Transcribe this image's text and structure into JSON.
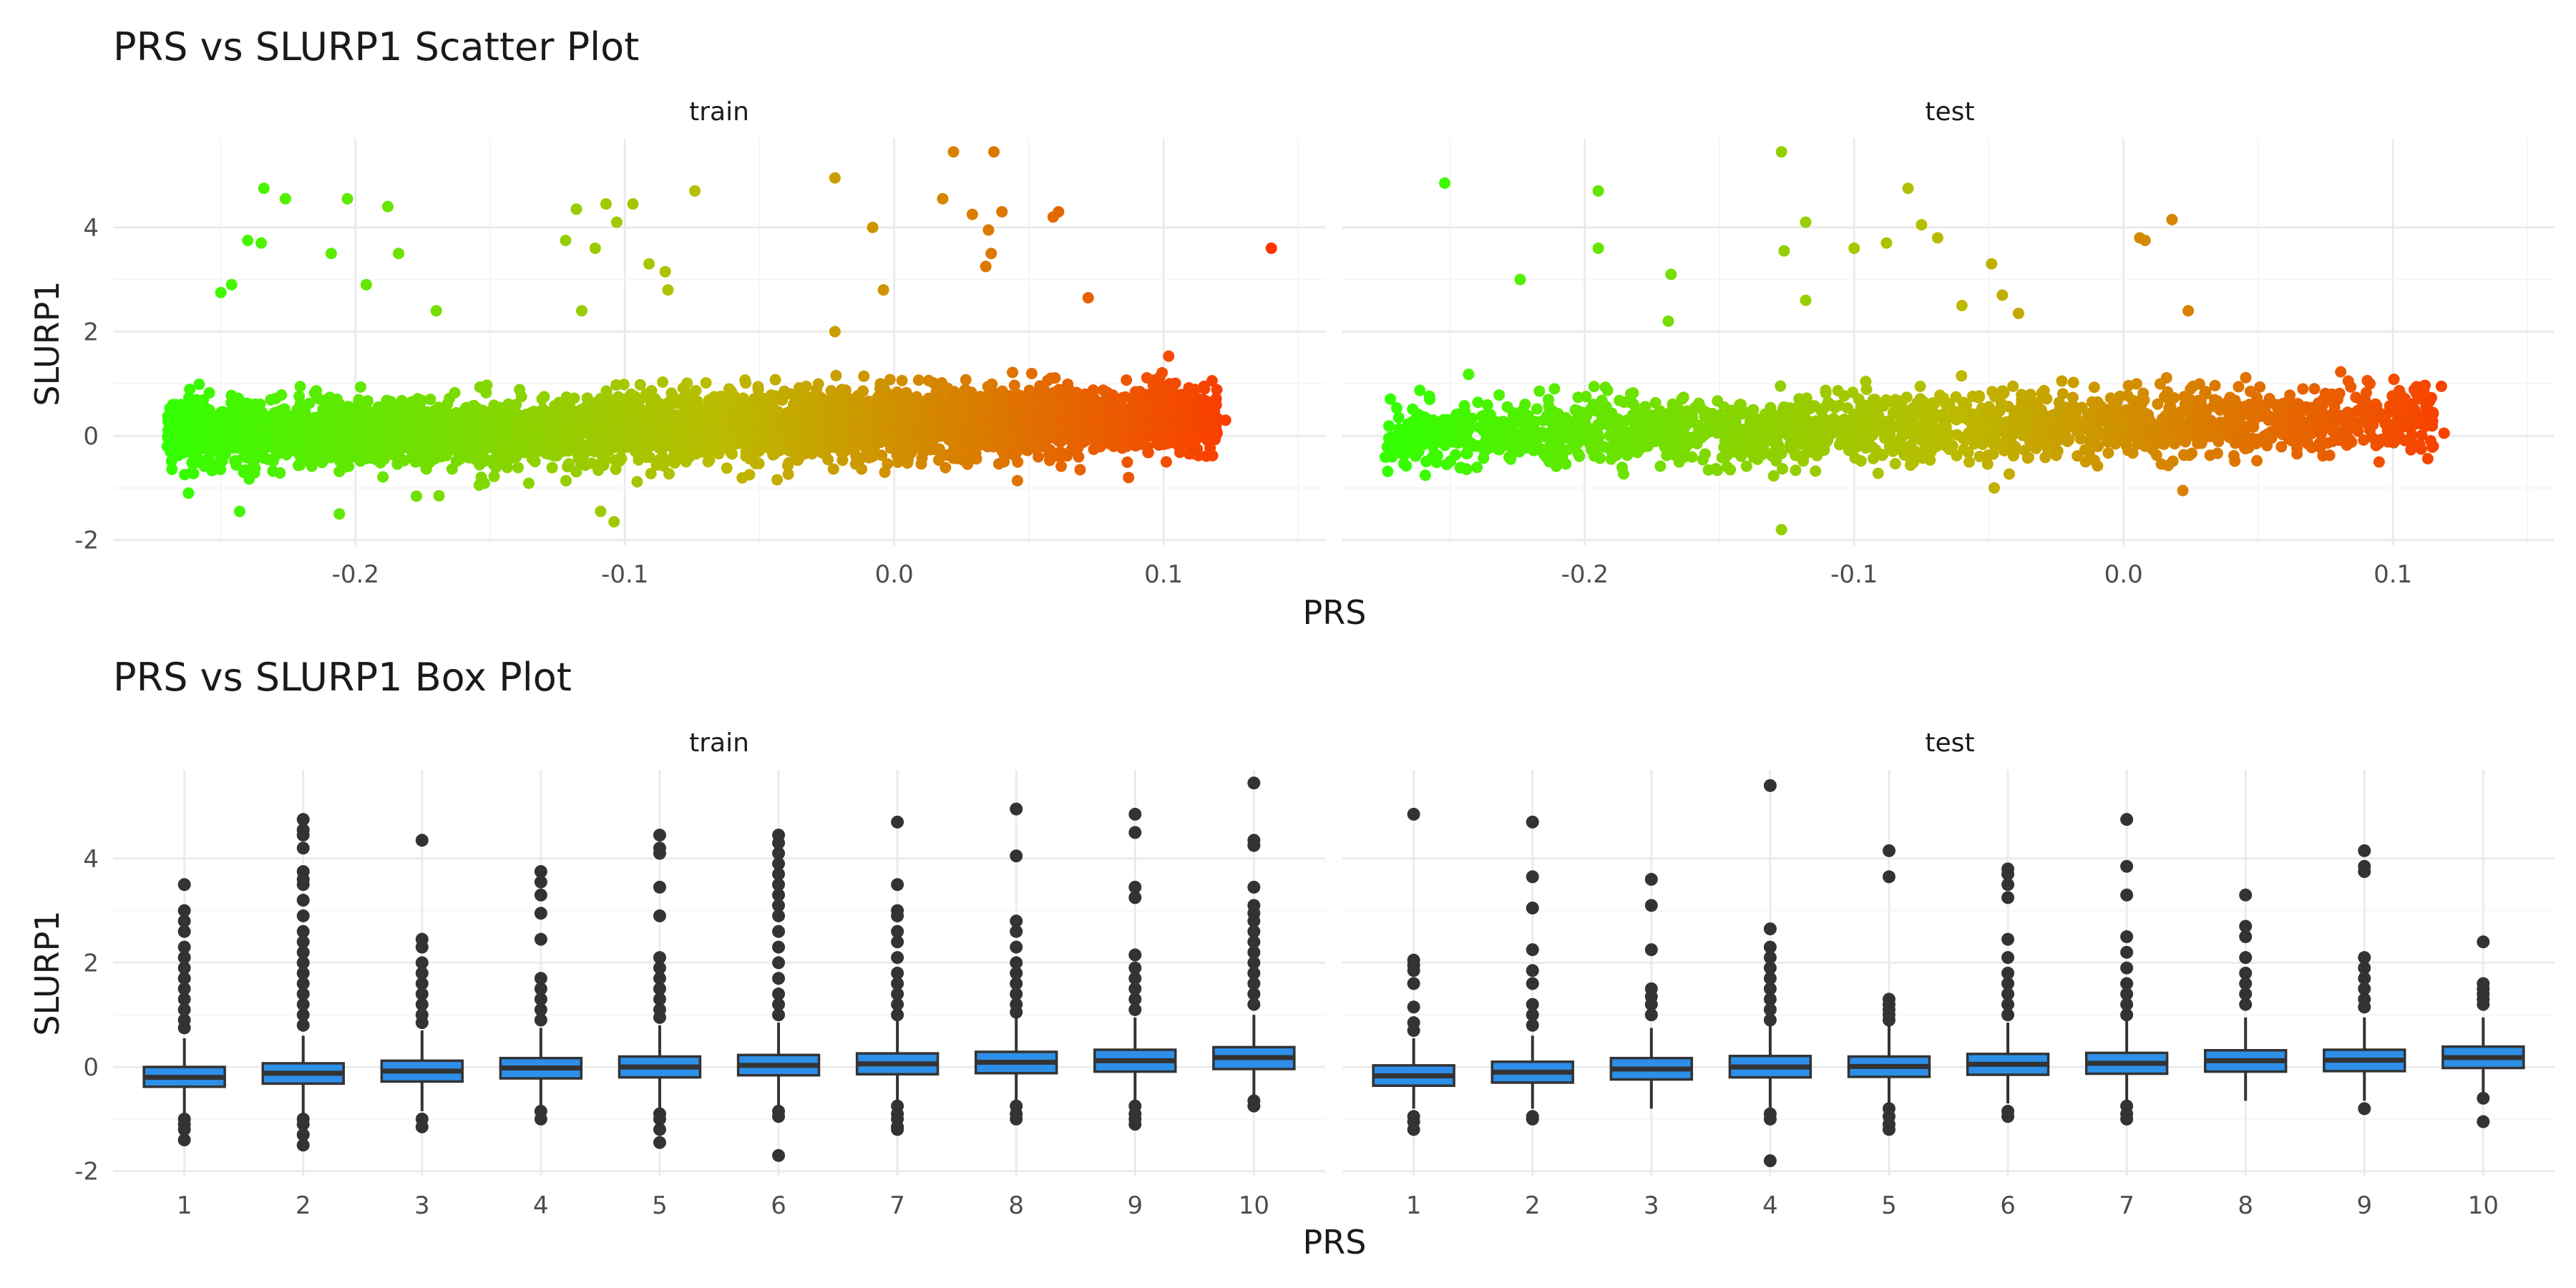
{
  "chart_data": [
    {
      "type": "scatter",
      "title": "PRS vs SLURP1 Scatter Plot",
      "xlabel": "PRS",
      "ylabel": "SLURP1",
      "facets": [
        "train",
        "test"
      ],
      "xlim": [
        -0.29,
        0.16
      ],
      "ylim": [
        -2.1,
        5.7
      ],
      "xticks": [
        -0.2,
        -0.1,
        0.0,
        0.1
      ],
      "xtick_labels": [
        "-0.2",
        "-0.1",
        "0.0",
        "0.1"
      ],
      "yticks": [
        -2,
        0,
        2,
        4
      ],
      "ytick_labels": [
        "-2",
        "0",
        "2",
        "4"
      ],
      "grid": true,
      "legend": "none",
      "color_gradient": {
        "low": "#33ff00",
        "mid": "#bbbb00",
        "high": "#ff3300",
        "low_value": -0.27,
        "high_value": 0.14
      },
      "panels": {
        "train": {
          "n_bulk_points": 4200,
          "bulk_x_range": [
            -0.27,
            0.12
          ],
          "points": [
            [
              0.14,
              3.6
            ],
            [
              -0.234,
              4.75
            ],
            [
              -0.226,
              4.55
            ],
            [
              -0.203,
              4.55
            ],
            [
              -0.188,
              4.4
            ],
            [
              -0.24,
              3.75
            ],
            [
              -0.235,
              3.7
            ],
            [
              -0.209,
              3.5
            ],
            [
              -0.184,
              3.5
            ],
            [
              -0.246,
              2.9
            ],
            [
              -0.25,
              2.75
            ],
            [
              -0.196,
              2.9
            ],
            [
              -0.17,
              2.4
            ],
            [
              -0.118,
              4.35
            ],
            [
              -0.107,
              4.45
            ],
            [
              -0.097,
              4.45
            ],
            [
              -0.074,
              4.7
            ],
            [
              -0.103,
              4.1
            ],
            [
              -0.122,
              3.75
            ],
            [
              -0.111,
              3.6
            ],
            [
              -0.091,
              3.3
            ],
            [
              -0.085,
              3.15
            ],
            [
              -0.116,
              2.4
            ],
            [
              -0.084,
              2.8
            ],
            [
              -0.022,
              4.95
            ],
            [
              0.022,
              5.45
            ],
            [
              0.037,
              5.45
            ],
            [
              0.018,
              4.55
            ],
            [
              0.029,
              4.25
            ],
            [
              0.04,
              4.3
            ],
            [
              0.061,
              4.3
            ],
            [
              0.059,
              4.2
            ],
            [
              -0.008,
              4.0
            ],
            [
              0.035,
              3.95
            ],
            [
              0.036,
              3.5
            ],
            [
              0.034,
              3.25
            ],
            [
              0.072,
              2.65
            ],
            [
              -0.004,
              2.8
            ],
            [
              -0.022,
              2.0
            ],
            [
              0.115,
              0.95
            ],
            [
              0.123,
              0.3
            ],
            [
              0.118,
              0.15
            ],
            [
              -0.268,
              0.2
            ],
            [
              -0.262,
              -1.1
            ],
            [
              -0.243,
              -1.45
            ],
            [
              -0.206,
              -1.5
            ],
            [
              -0.169,
              -1.15
            ],
            [
              -0.104,
              -1.65
            ],
            [
              -0.109,
              -1.45
            ],
            [
              0.069,
              -0.65
            ],
            [
              0.087,
              -0.8
            ],
            [
              0.101,
              -0.5
            ]
          ]
        },
        "test": {
          "n_bulk_points": 1900,
          "bulk_x_range": [
            -0.275,
            0.115
          ],
          "points": [
            [
              -0.252,
              4.85
            ],
            [
              -0.195,
              4.7
            ],
            [
              -0.127,
              5.45
            ],
            [
              -0.08,
              4.75
            ],
            [
              -0.075,
              4.05
            ],
            [
              -0.118,
              4.1
            ],
            [
              -0.088,
              3.7
            ],
            [
              -0.069,
              3.8
            ],
            [
              -0.1,
              3.6
            ],
            [
              -0.126,
              3.55
            ],
            [
              -0.195,
              3.6
            ],
            [
              -0.224,
              3.0
            ],
            [
              -0.168,
              3.1
            ],
            [
              -0.049,
              3.3
            ],
            [
              -0.045,
              2.7
            ],
            [
              -0.06,
              2.5
            ],
            [
              -0.039,
              2.35
            ],
            [
              0.018,
              4.15
            ],
            [
              0.006,
              3.8
            ],
            [
              0.008,
              3.75
            ],
            [
              0.024,
              2.4
            ],
            [
              -0.118,
              2.6
            ],
            [
              -0.169,
              2.2
            ],
            [
              0.118,
              0.95
            ],
            [
              0.119,
              0.05
            ],
            [
              0.115,
              -0.2
            ],
            [
              -0.127,
              -1.8
            ],
            [
              -0.048,
              -1.0
            ],
            [
              0.022,
              -1.05
            ],
            [
              -0.146,
              -0.65
            ]
          ]
        }
      }
    },
    {
      "type": "box",
      "title": "PRS vs SLURP1 Box Plot",
      "xlabel": "PRS",
      "ylabel": "SLURP1",
      "facets": [
        "train",
        "test"
      ],
      "categories": [
        "1",
        "2",
        "3",
        "4",
        "5",
        "6",
        "7",
        "8",
        "9",
        "10"
      ],
      "ylim": [
        -2.1,
        5.7
      ],
      "yticks": [
        -2,
        0,
        2,
        4
      ],
      "ytick_labels": [
        "-2",
        "0",
        "2",
        "4"
      ],
      "box_fill": "#2d8fe8",
      "grid": true,
      "legend": "none",
      "panels": {
        "train": {
          "boxes": [
            {
              "q1": -0.38,
              "median": -0.2,
              "q3": 0.0,
              "lower": -0.9,
              "upper": 0.55,
              "outliers": [
                3.5,
                3.0,
                2.8,
                2.6,
                2.3,
                2.1,
                1.9,
                1.7,
                1.5,
                1.3,
                1.1,
                0.9,
                0.75,
                -1.0,
                -1.1,
                -1.2,
                -1.4
              ]
            },
            {
              "q1": -0.32,
              "median": -0.12,
              "q3": 0.07,
              "lower": -0.9,
              "upper": 0.6,
              "outliers": [
                4.75,
                4.55,
                4.45,
                4.2,
                3.75,
                3.6,
                3.5,
                3.2,
                2.9,
                2.6,
                2.4,
                2.2,
                2.0,
                1.8,
                1.6,
                1.4,
                1.2,
                1.0,
                0.8,
                -1.0,
                -1.1,
                -1.3,
                -1.5
              ]
            },
            {
              "q1": -0.28,
              "median": -0.08,
              "q3": 0.12,
              "lower": -0.85,
              "upper": 0.7,
              "outliers": [
                4.35,
                2.45,
                2.3,
                2.0,
                1.8,
                1.6,
                1.4,
                1.2,
                1.0,
                0.85,
                -1.0,
                -1.15
              ]
            },
            {
              "q1": -0.22,
              "median": -0.02,
              "q3": 0.17,
              "lower": -0.8,
              "upper": 0.75,
              "outliers": [
                3.75,
                3.55,
                3.3,
                2.95,
                2.45,
                1.7,
                1.5,
                1.3,
                1.1,
                0.9,
                -0.85,
                -1.0
              ]
            },
            {
              "q1": -0.2,
              "median": 0.0,
              "q3": 0.2,
              "lower": -0.8,
              "upper": 0.8,
              "outliers": [
                4.45,
                4.2,
                4.1,
                3.45,
                2.9,
                2.1,
                1.9,
                1.7,
                1.5,
                1.3,
                1.1,
                0.95,
                -0.9,
                -1.0,
                -1.2,
                -1.45
              ]
            },
            {
              "q1": -0.16,
              "median": 0.03,
              "q3": 0.23,
              "lower": -0.75,
              "upper": 0.85,
              "outliers": [
                4.45,
                4.3,
                4.1,
                3.9,
                3.7,
                3.5,
                3.3,
                3.1,
                2.9,
                2.6,
                2.3,
                2.0,
                1.7,
                1.4,
                1.2,
                1.0,
                -0.85,
                -0.95,
                -1.7
              ]
            },
            {
              "q1": -0.14,
              "median": 0.06,
              "q3": 0.26,
              "lower": -0.7,
              "upper": 0.9,
              "outliers": [
                4.7,
                3.5,
                3.0,
                2.9,
                2.6,
                2.4,
                2.1,
                1.8,
                1.6,
                1.4,
                1.2,
                1.0,
                -0.75,
                -0.9,
                -1.0,
                -1.15,
                -1.2
              ]
            },
            {
              "q1": -0.12,
              "median": 0.09,
              "q3": 0.29,
              "lower": -0.7,
              "upper": 0.95,
              "outliers": [
                4.95,
                4.05,
                2.8,
                2.6,
                2.3,
                2.0,
                1.8,
                1.6,
                1.4,
                1.2,
                1.05,
                -0.75,
                -0.9,
                -1.0
              ]
            },
            {
              "q1": -0.09,
              "median": 0.12,
              "q3": 0.33,
              "lower": -0.65,
              "upper": 0.95,
              "outliers": [
                4.85,
                4.5,
                3.45,
                3.25,
                2.15,
                1.9,
                1.7,
                1.5,
                1.3,
                1.1,
                -0.75,
                -0.9,
                -1.0,
                -1.1
              ]
            },
            {
              "q1": -0.04,
              "median": 0.18,
              "q3": 0.38,
              "lower": -0.55,
              "upper": 1.0,
              "outliers": [
                5.45,
                4.35,
                4.25,
                3.45,
                3.1,
                2.95,
                2.8,
                2.6,
                2.4,
                2.2,
                2.0,
                1.8,
                1.6,
                1.4,
                1.2,
                -0.65,
                -0.75
              ]
            }
          ]
        },
        "test": {
          "boxes": [
            {
              "q1": -0.36,
              "median": -0.17,
              "q3": 0.03,
              "lower": -0.8,
              "upper": 0.55,
              "outliers": [
                4.85,
                2.05,
                1.95,
                1.85,
                1.6,
                1.15,
                0.85,
                0.7,
                -0.95,
                -1.05,
                -1.2
              ]
            },
            {
              "q1": -0.3,
              "median": -0.1,
              "q3": 0.1,
              "lower": -0.8,
              "upper": 0.6,
              "outliers": [
                4.7,
                3.65,
                3.05,
                2.25,
                1.85,
                1.6,
                1.2,
                1.0,
                0.8,
                -0.95,
                -1.0
              ]
            },
            {
              "q1": -0.24,
              "median": -0.04,
              "q3": 0.17,
              "lower": -0.8,
              "upper": 0.75,
              "outliers": [
                3.6,
                3.1,
                2.25,
                1.5,
                1.35,
                1.2,
                1.0
              ]
            },
            {
              "q1": -0.2,
              "median": 0.0,
              "q3": 0.21,
              "lower": -0.8,
              "upper": 0.8,
              "outliers": [
                5.4,
                2.65,
                2.3,
                2.1,
                1.9,
                1.7,
                1.5,
                1.3,
                1.1,
                0.9,
                -0.9,
                -1.0,
                -1.8
              ]
            },
            {
              "q1": -0.19,
              "median": 0.01,
              "q3": 0.2,
              "lower": -0.75,
              "upper": 0.8,
              "outliers": [
                4.15,
                3.65,
                1.3,
                1.2,
                1.1,
                1.0,
                0.9,
                -0.8,
                -0.95,
                -1.1,
                -1.2
              ]
            },
            {
              "q1": -0.15,
              "median": 0.05,
              "q3": 0.25,
              "lower": -0.7,
              "upper": 0.85,
              "outliers": [
                3.8,
                3.7,
                3.5,
                3.25,
                2.45,
                2.1,
                1.8,
                1.6,
                1.4,
                1.2,
                1.0,
                -0.85,
                -0.95
              ]
            },
            {
              "q1": -0.13,
              "median": 0.07,
              "q3": 0.27,
              "lower": -0.7,
              "upper": 0.9,
              "outliers": [
                4.75,
                3.85,
                3.3,
                2.5,
                2.2,
                1.9,
                1.6,
                1.4,
                1.2,
                1.0,
                -0.75,
                -0.9,
                -1.0
              ]
            },
            {
              "q1": -0.09,
              "median": 0.12,
              "q3": 0.32,
              "lower": -0.65,
              "upper": 0.95,
              "outliers": [
                3.3,
                2.7,
                2.5,
                2.1,
                1.8,
                1.6,
                1.4,
                1.2
              ]
            },
            {
              "q1": -0.08,
              "median": 0.13,
              "q3": 0.33,
              "lower": -0.65,
              "upper": 0.95,
              "outliers": [
                4.15,
                3.85,
                3.75,
                2.1,
                1.9,
                1.7,
                1.5,
                1.3,
                1.15,
                -0.8
              ]
            },
            {
              "q1": -0.02,
              "median": 0.18,
              "q3": 0.39,
              "lower": -0.55,
              "upper": 0.95,
              "outliers": [
                2.4,
                1.6,
                1.5,
                1.4,
                1.3,
                1.2,
                -0.6,
                -1.05
              ]
            }
          ]
        }
      }
    }
  ]
}
